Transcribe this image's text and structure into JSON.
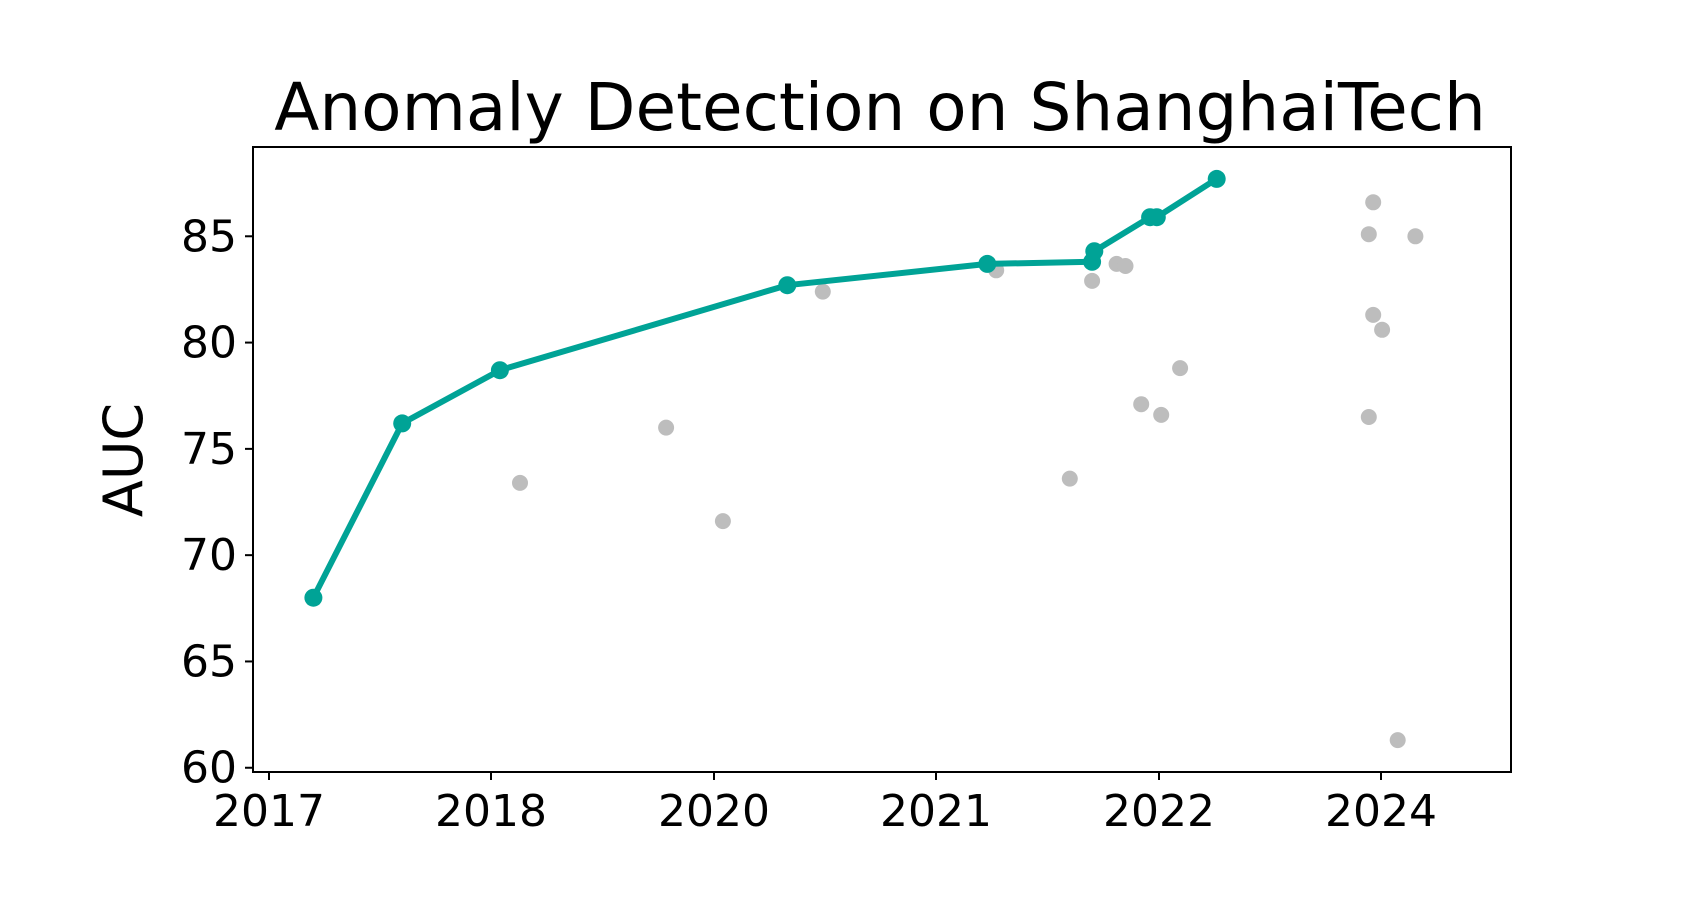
{
  "chart_data": {
    "type": "scatter",
    "title": "Anomaly Detection on ShanghaiTech",
    "xlabel": "",
    "ylabel": "AUC",
    "x_ticks": [
      "2017",
      "2018",
      "2020",
      "2021",
      "2022",
      "2024"
    ],
    "y_ticks": [
      "60",
      "65",
      "70",
      "75",
      "80",
      "85"
    ],
    "ylim": [
      59.8,
      89.2
    ],
    "grid": false,
    "legend": "none",
    "colors": {
      "sota": "#00a396",
      "other": "#bdbdbd"
    },
    "series": [
      {
        "values": [
          [
            2017.2,
            68.0
          ],
          [
            2017.6,
            76.2
          ],
          [
            2018.08,
            78.7
          ],
          [
            2020.33,
            82.7
          ],
          [
            2021.23,
            83.7
          ],
          [
            2021.7,
            83.8
          ],
          [
            2021.71,
            84.3
          ],
          [
            2021.96,
            85.9
          ],
          [
            2021.99,
            85.9
          ],
          [
            2022.52,
            87.7
          ]
        ]
      },
      {
        "values": [
          [
            2018.26,
            73.4
          ],
          [
            2019.57,
            76.0
          ],
          [
            2020.04,
            71.6
          ],
          [
            2020.49,
            82.4
          ],
          [
            2021.27,
            83.4
          ],
          [
            2021.6,
            73.6
          ],
          [
            2021.7,
            82.9
          ],
          [
            2021.81,
            83.7
          ],
          [
            2021.85,
            83.6
          ],
          [
            2021.92,
            77.1
          ],
          [
            2022.02,
            76.6
          ],
          [
            2022.19,
            78.8
          ],
          [
            2023.89,
            76.5
          ],
          [
            2023.89,
            85.1
          ],
          [
            2023.93,
            86.6
          ],
          [
            2023.93,
            81.3
          ],
          [
            2024.01,
            80.6
          ],
          [
            2024.15,
            61.3
          ],
          [
            2024.31,
            85.0
          ]
        ]
      }
    ]
  }
}
